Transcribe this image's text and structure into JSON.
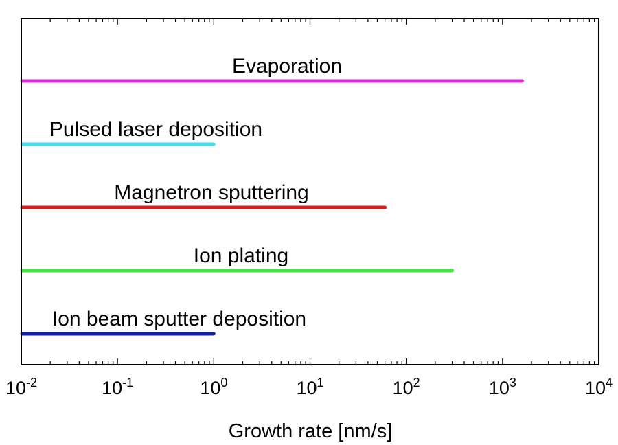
{
  "chart_data": {
    "type": "bar",
    "orientation": "horizontal",
    "title": "",
    "xlabel": "Growth rate [nm/s]",
    "ylabel": "",
    "xscale": "log",
    "xlim": [
      0.01,
      10000
    ],
    "grid": false,
    "legend": "none",
    "xticks": [
      {
        "base": "10",
        "exp": "-2",
        "value": 0.01
      },
      {
        "base": "10",
        "exp": "-1",
        "value": 0.1
      },
      {
        "base": "10",
        "exp": "0",
        "value": 1
      },
      {
        "base": "10",
        "exp": "1",
        "value": 10
      },
      {
        "base": "10",
        "exp": "2",
        "value": 100
      },
      {
        "base": "10",
        "exp": "3",
        "value": 1000
      },
      {
        "base": "10",
        "exp": "4",
        "value": 10000
      }
    ],
    "series": [
      {
        "name": "Evaporation",
        "start": 0.01,
        "end": 1600,
        "color": "#d62ed6"
      },
      {
        "name": "Pulsed laser deposition",
        "start": 0.01,
        "end": 1.0,
        "color": "#3fe0ee"
      },
      {
        "name": "Magnetron sputtering",
        "start": 0.01,
        "end": 60,
        "color": "#d41f1f"
      },
      {
        "name": "Ion plating",
        "start": 0.01,
        "end": 300,
        "color": "#3ee63e"
      },
      {
        "name": "Ion beam sputter deposition",
        "start": 0.01,
        "end": 1.0,
        "color": "#1020a8"
      }
    ]
  }
}
